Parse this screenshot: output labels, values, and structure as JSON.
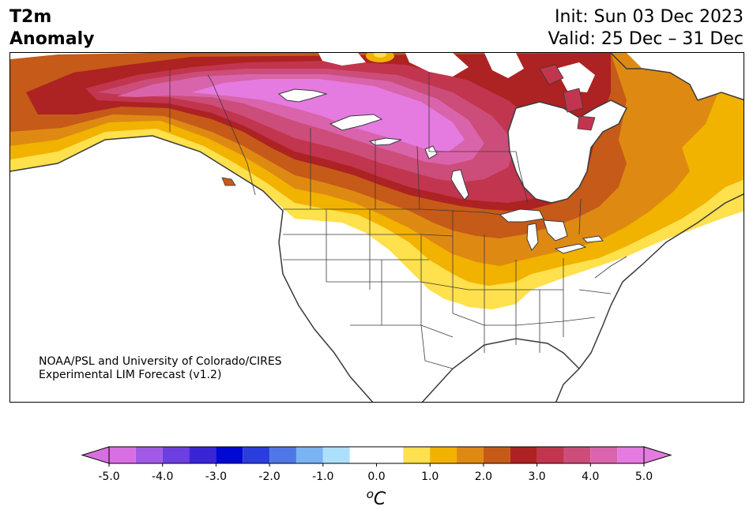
{
  "title": {
    "left_line1": "T2m",
    "left_line2": "Anomaly",
    "right_line1": "Init: Sun 03 Dec 2023",
    "right_line2": "Valid: 25 Dec – 31 Dec"
  },
  "credit": {
    "line1": "NOAA/PSL and University of Colorado/CIRES",
    "line2": "Experimental LIM Forecast (v1.2)"
  },
  "colorbar": {
    "unit": "°C",
    "unit_label": "oC",
    "ticks": [
      "-5.0",
      "-4.0",
      "-3.0",
      "-2.0",
      "-1.0",
      "0.0",
      "1.0",
      "2.0",
      "3.0",
      "4.0",
      "5.0"
    ],
    "levels": [
      -5.0,
      -4.5,
      -4.0,
      -3.5,
      -3.0,
      -2.5,
      -2.0,
      -1.5,
      -1.0,
      -0.5,
      0.5,
      1.0,
      1.5,
      2.0,
      2.5,
      3.0,
      3.5,
      4.0,
      4.5,
      5.0
    ],
    "colors": [
      "#d86fe0",
      "#a15ae6",
      "#6d3fe0",
      "#3a25d6",
      "#0008d3",
      "#2a3ede",
      "#4f78e6",
      "#79b3f2",
      "#ade0fb",
      "#ffffff",
      "#ffe04d",
      "#f2b200",
      "#de8a12",
      "#c65a18",
      "#ad2222",
      "#c2354e",
      "#cc4d7a",
      "#d964ab",
      "#e57be0"
    ],
    "extend": "both"
  },
  "map_colors": {
    "ocean": "#ffffff",
    "land": "#ffffff",
    "coast": "#3a3a3a",
    "border": "#3a3a3a",
    "lake": "#ffffff"
  }
}
